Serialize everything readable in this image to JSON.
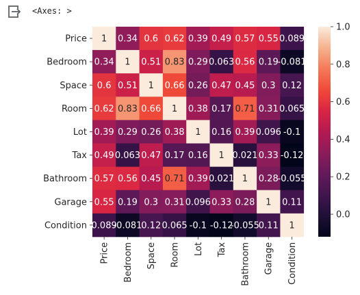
{
  "output": {
    "repr": "<Axes: >",
    "icon": "output-redirect-icon"
  },
  "chart_data": {
    "type": "heatmap",
    "title": "",
    "xlabel": "",
    "ylabel": "",
    "row_labels": [
      "Price",
      "Bedroom",
      "Space",
      "Room",
      "Lot",
      "Tax",
      "Bathroom",
      "Garage",
      "Condition"
    ],
    "col_labels": [
      "Price",
      "Bedroom",
      "Space",
      "Room",
      "Lot",
      "Tax",
      "Bathroom",
      "Garage",
      "Condition"
    ],
    "values": [
      [
        1,
        0.34,
        0.6,
        0.62,
        0.39,
        0.49,
        0.57,
        0.55,
        0.089
      ],
      [
        0.34,
        1,
        0.51,
        0.83,
        0.29,
        0.063,
        0.56,
        0.19,
        -0.081
      ],
      [
        0.6,
        0.51,
        1,
        0.66,
        0.26,
        0.47,
        0.45,
        0.3,
        0.12
      ],
      [
        0.62,
        0.83,
        0.66,
        1,
        0.38,
        0.17,
        0.71,
        0.31,
        0.065
      ],
      [
        0.39,
        0.29,
        0.26,
        0.38,
        1,
        0.16,
        0.39,
        0.096,
        -0.1
      ],
      [
        0.49,
        0.063,
        0.47,
        0.17,
        0.16,
        1,
        0.021,
        0.33,
        -0.12
      ],
      [
        0.57,
        0.56,
        0.45,
        0.71,
        0.39,
        0.021,
        1,
        0.28,
        -0.055
      ],
      [
        0.55,
        0.19,
        0.3,
        0.31,
        0.096,
        0.33,
        0.28,
        1,
        0.11
      ],
      [
        0.089,
        -0.081,
        0.12,
        0.065,
        -0.1,
        -0.12,
        -0.055,
        0.11,
        1
      ]
    ],
    "cell_labels": [
      [
        "1",
        "0.34",
        "0.6",
        "0.62",
        "0.39",
        "0.49",
        "0.57",
        "0.55",
        "0.089"
      ],
      [
        "0.34",
        "1",
        "0.51",
        "0.83",
        "0.29",
        "0.063",
        "0.56",
        "0.19",
        "-0.081"
      ],
      [
        "0.6",
        "0.51",
        "1",
        "0.66",
        "0.26",
        "0.47",
        "0.45",
        "0.3",
        "0.12"
      ],
      [
        "0.62",
        "0.83",
        "0.66",
        "1",
        "0.38",
        "0.17",
        "0.71",
        "0.31",
        "0.065"
      ],
      [
        "0.39",
        "0.29",
        "0.26",
        "0.38",
        "1",
        "0.16",
        "0.39",
        "0.096",
        "-0.1"
      ],
      [
        "0.49",
        "0.063",
        "0.47",
        "0.17",
        "0.16",
        "1",
        "0.021",
        "0.33",
        "-0.12"
      ],
      [
        "0.57",
        "0.56",
        "0.45",
        "0.71",
        "0.39",
        "0.021",
        "1",
        "0.28",
        "-0.055"
      ],
      [
        "0.55",
        "0.19",
        "0.3",
        "0.31",
        "0.096",
        "0.33",
        "0.28",
        "1",
        "0.11"
      ],
      [
        "0.089",
        "-0.081",
        "0.12",
        "0.065",
        "-0.1",
        "-0.12",
        "-0.055",
        "0.11",
        "1"
      ]
    ],
    "vmin": -0.12,
    "vmax": 1,
    "colormap": "rocket",
    "colorbar": {
      "ticks": [
        0.0,
        0.2,
        0.4,
        0.6,
        0.8,
        1.0
      ],
      "tick_labels": [
        "0.0",
        "0.2",
        "0.4",
        "0.6",
        "0.8",
        "1.0"
      ]
    },
    "grid": false,
    "legend": "colorbar-right"
  }
}
